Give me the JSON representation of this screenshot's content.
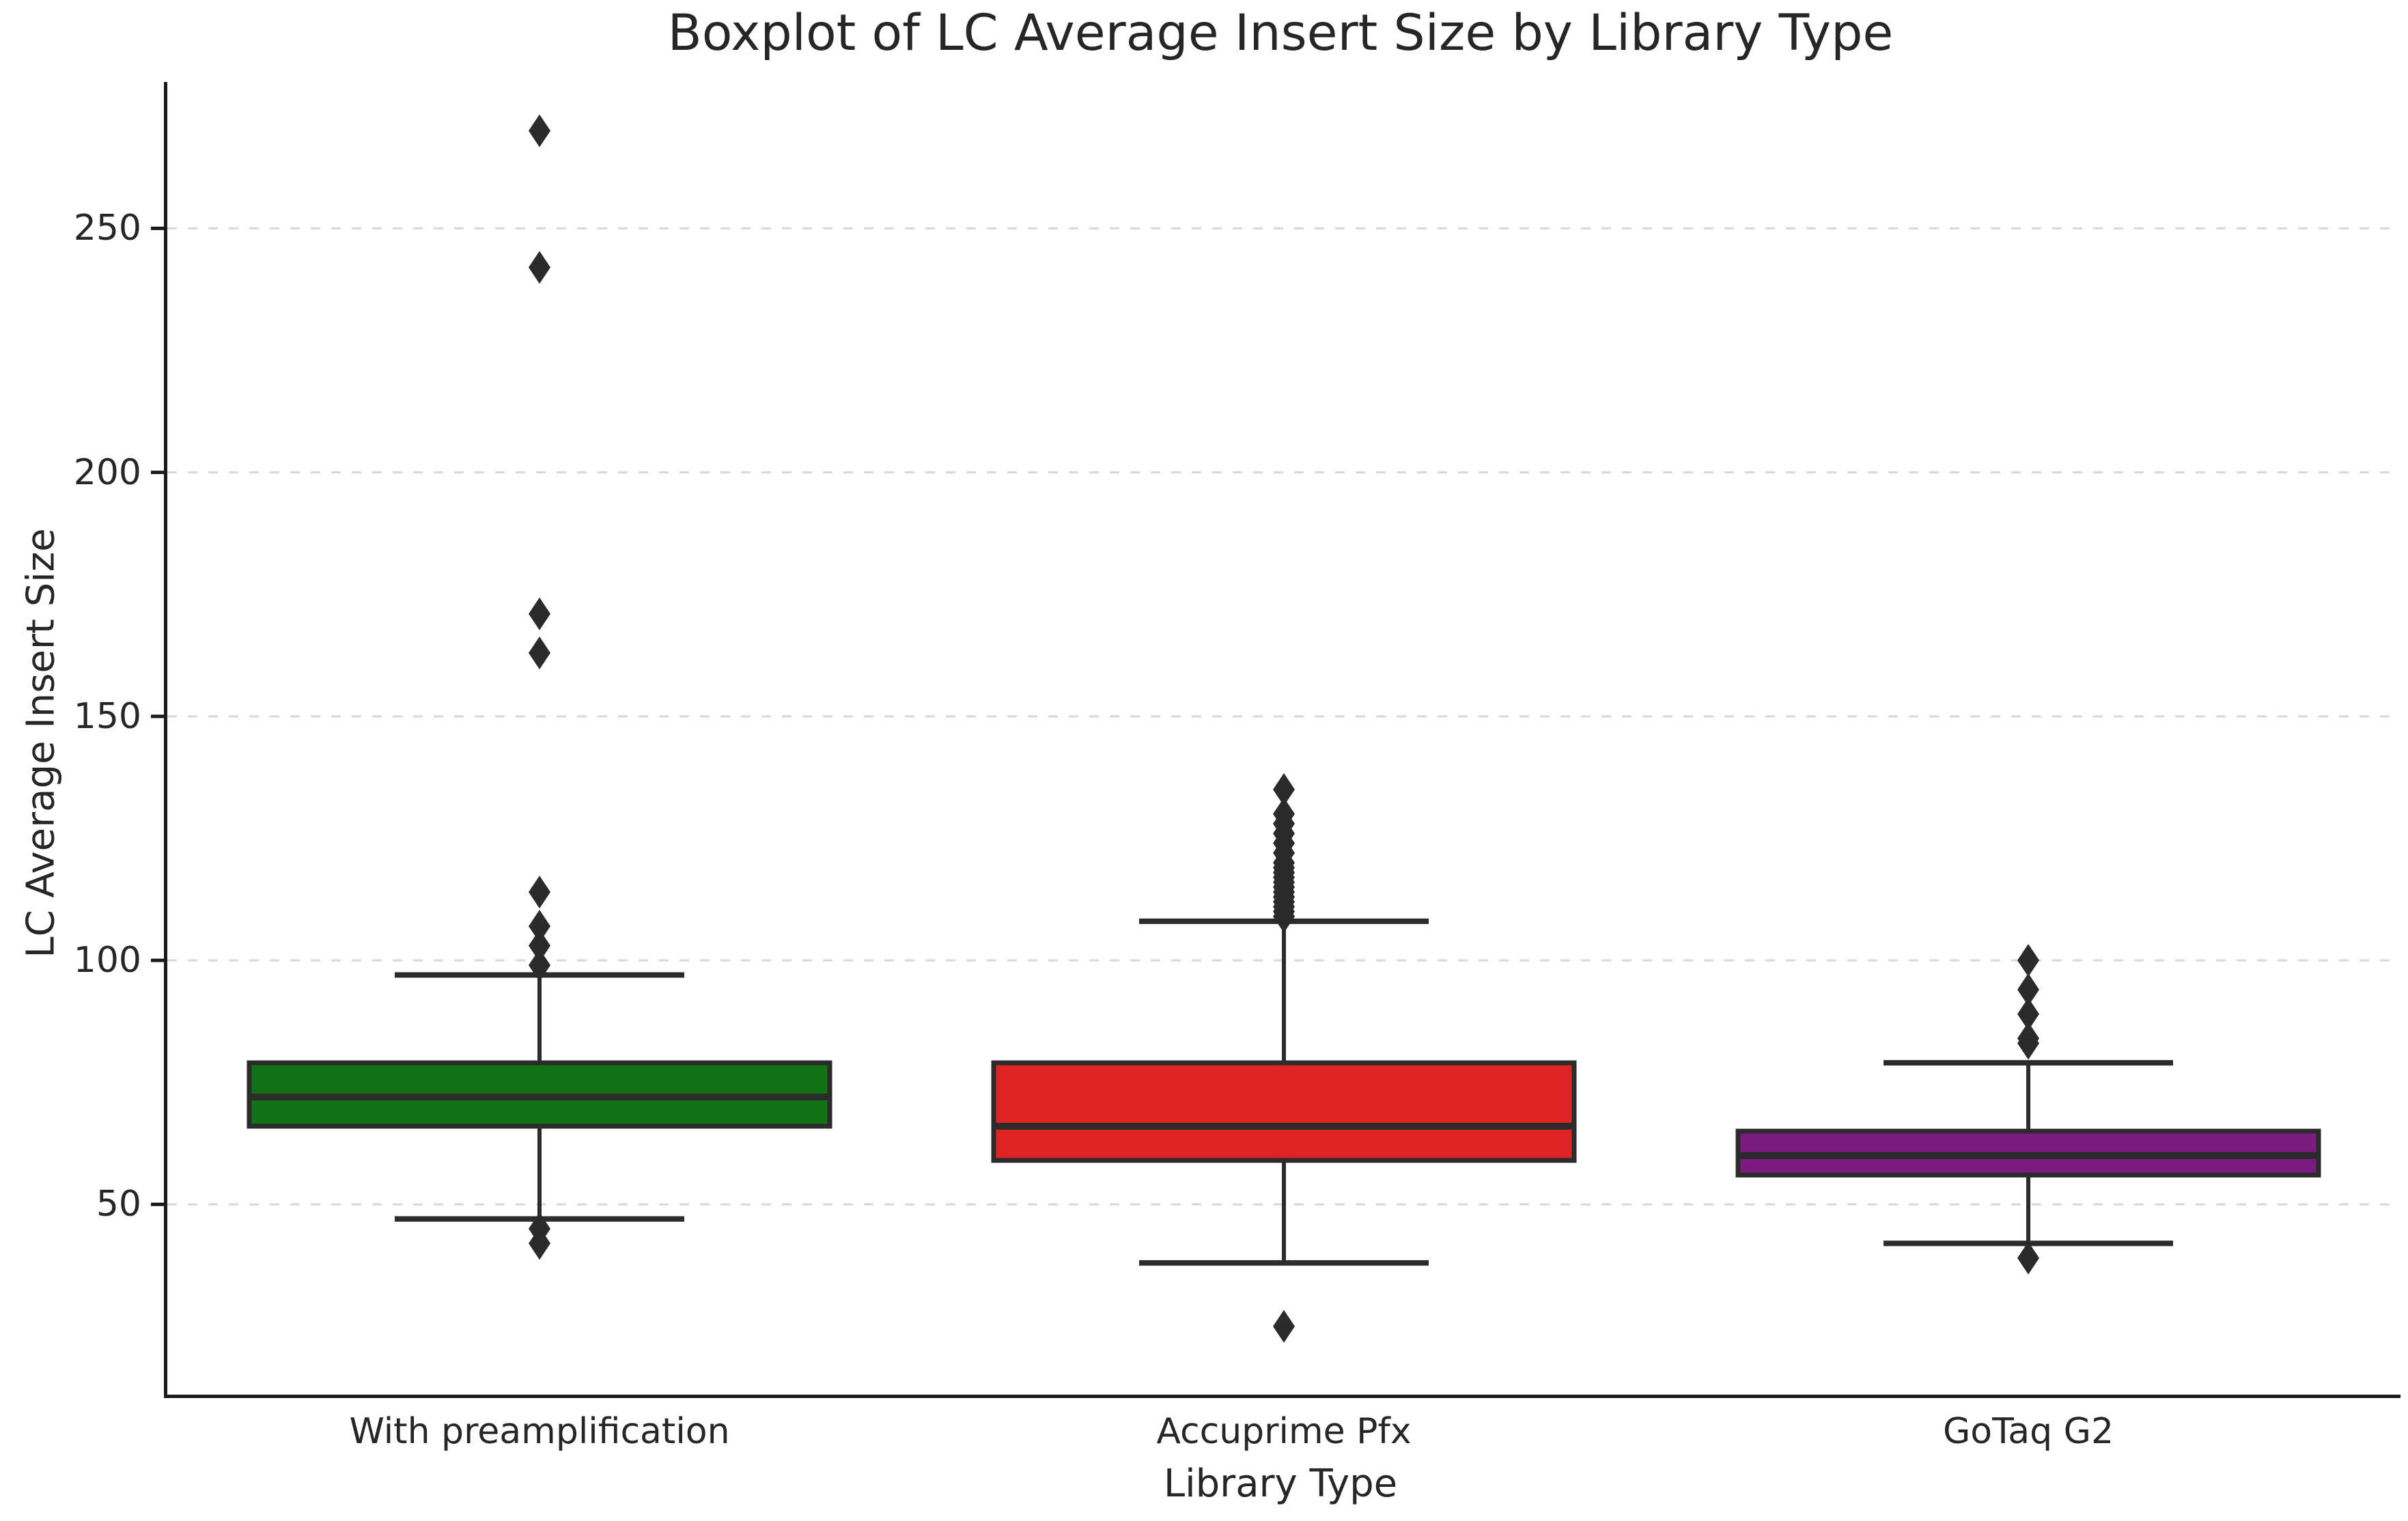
{
  "chart_data": {
    "type": "boxplot",
    "title": "Boxplot of LC Average Insert Size by Library Type",
    "xlabel": "Library Type",
    "ylabel": "LC Average Insert Size",
    "ylim": [
      11,
      280
    ],
    "yticks": [
      50,
      100,
      150,
      200,
      250
    ],
    "grid": "horizontal-dashed",
    "legend": "none",
    "marker": "diamond",
    "categories": [
      "With preamplification",
      "Accuprime Pfx",
      "GoTaq G2"
    ],
    "series": [
      {
        "name": "With preamplification",
        "color": "#117216",
        "whisker_low": 47,
        "q1": 66,
        "median": 72,
        "q3": 79,
        "whisker_high": 97,
        "outliers": [
          42,
          45,
          99,
          103,
          107,
          114,
          163,
          171,
          242,
          270
        ]
      },
      {
        "name": "Accuprime Pfx",
        "color": "#df2424",
        "whisker_low": 38,
        "q1": 59,
        "median": 66,
        "q3": 79,
        "whisker_high": 108,
        "outliers": [
          25,
          109,
          110,
          111,
          112,
          113,
          114,
          115,
          116,
          117,
          118,
          119,
          120,
          122,
          124,
          126,
          128,
          130,
          135
        ]
      },
      {
        "name": "GoTaq G2",
        "color": "#7b1a80",
        "whisker_low": 42,
        "q1": 56,
        "median": 60,
        "q3": 65,
        "whisker_high": 79,
        "outliers": [
          39,
          83,
          84,
          89,
          94,
          100
        ]
      }
    ],
    "styles": {
      "edge_color": "#2b2b2b",
      "grid_color": "#d8d8d8",
      "axis_color": "#1a1a1a",
      "text_color": "#262626",
      "background": "#ffffff"
    }
  }
}
